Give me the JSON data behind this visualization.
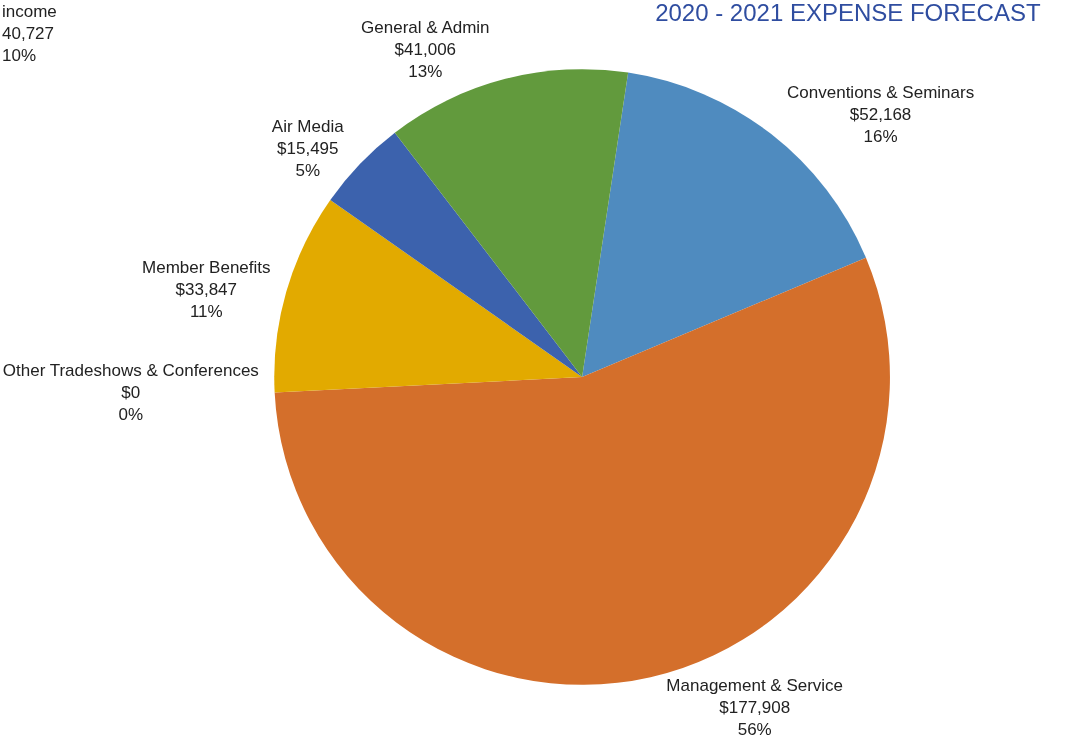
{
  "chart_data": {
    "type": "pie",
    "title": "2020 - 2021 EXPENSE FORECAST",
    "categories": [
      "Conventions & Seminars",
      "Management & Service",
      "Other Tradeshows & Conferences",
      "Member Benefits",
      "Air Media",
      "General & Admin"
    ],
    "values": [
      52168,
      177908,
      0,
      33847,
      15495,
      41006
    ],
    "value_labels": [
      "$52,168\n16%",
      "$177,908\n56%",
      "$0\n0%",
      "$33,847\n11%",
      "$15,495\n5%",
      "$41,006\n13%"
    ],
    "colors": [
      "#4f8bbf",
      "#d46f2b",
      "#a5a5a5",
      "#e2aa00",
      "#3c62ad",
      "#629a3d"
    ],
    "annotations": [
      "income\n40,727\n10%"
    ],
    "legend": false
  }
}
